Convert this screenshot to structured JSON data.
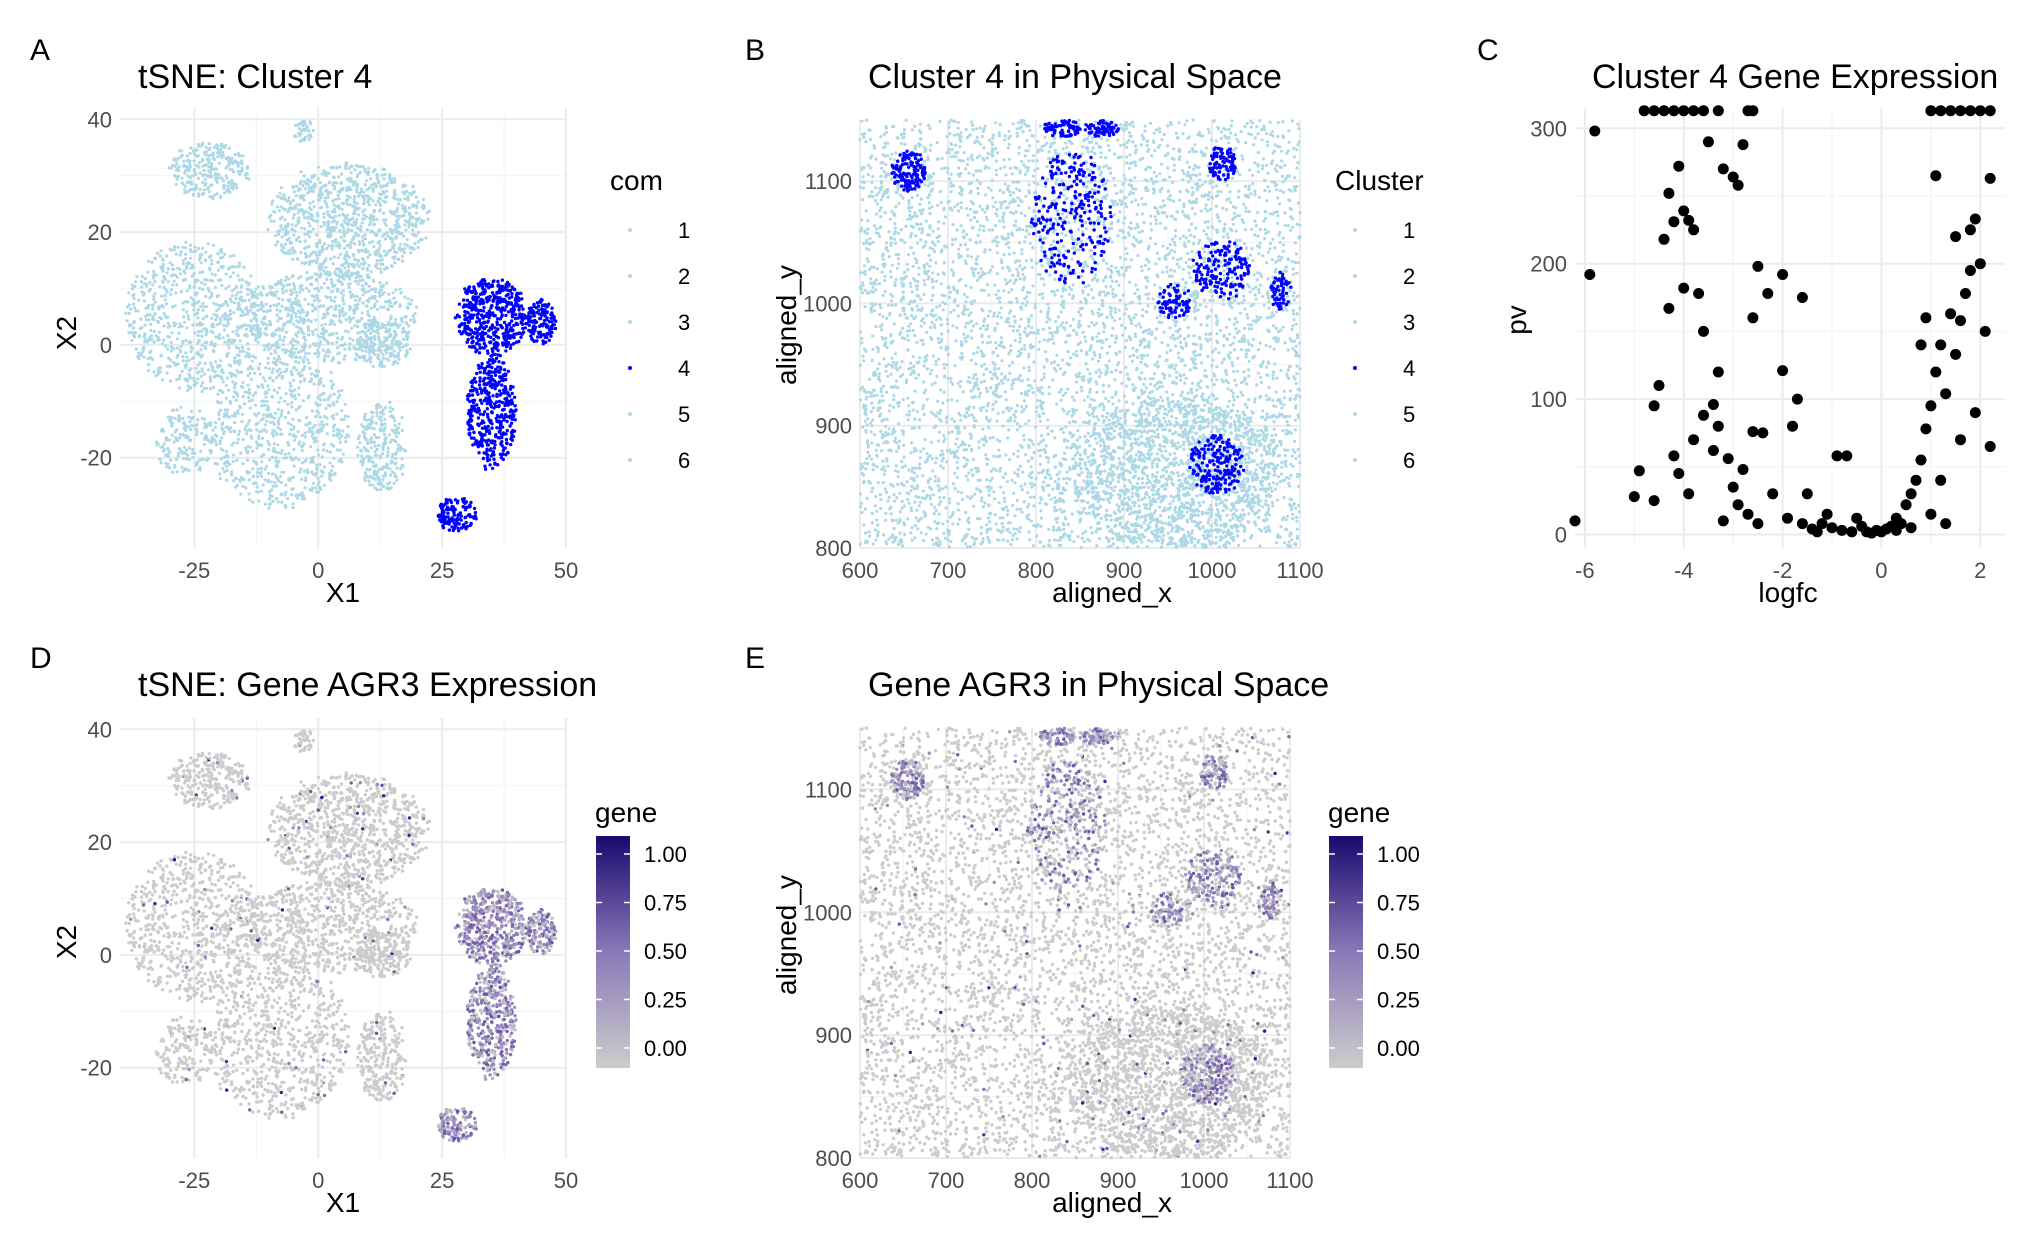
{
  "chart_data": [
    {
      "panel_tag": "A",
      "type": "scatter",
      "title": "tSNE: Cluster 4",
      "xlabel": "X1",
      "ylabel": "X2",
      "xlim": [
        -40,
        50
      ],
      "ylim": [
        -36,
        42
      ],
      "xticks": [
        -25,
        0,
        25,
        50
      ],
      "yticks": [
        -20,
        0,
        20,
        40
      ],
      "grid": true,
      "legend": {
        "title": "com",
        "position": "right",
        "entries": [
          "1",
          "2",
          "3",
          "4",
          "5",
          "6"
        ],
        "colors": [
          "#add8e6",
          "#add8e6",
          "#add8e6",
          "#0000ff",
          "#add8e6",
          "#add8e6"
        ]
      },
      "colors": {
        "other": "#add8e6",
        "highlight": "#0000ff"
      },
      "regions": [
        {
          "cluster": "other",
          "shape": "ellipse",
          "cx": -22,
          "cy": 31,
          "rx": 8,
          "ry": 5,
          "n": 260
        },
        {
          "cluster": "other",
          "shape": "ellipse",
          "cx": -3,
          "cy": 38,
          "rx": 2,
          "ry": 2,
          "n": 40
        },
        {
          "cluster": "other",
          "shape": "ellipse",
          "cx": 6,
          "cy": 22,
          "rx": 16,
          "ry": 10,
          "n": 900
        },
        {
          "cluster": "other",
          "shape": "ellipse",
          "cx": 2,
          "cy": 5,
          "rx": 18,
          "ry": 8,
          "n": 700
        },
        {
          "cluster": "other",
          "shape": "ellipse",
          "cx": -25,
          "cy": 5,
          "rx": 14,
          "ry": 13,
          "n": 700
        },
        {
          "cluster": "other",
          "shape": "ellipse",
          "cx": -8,
          "cy": -15,
          "rx": 14,
          "ry": 14,
          "n": 700
        },
        {
          "cluster": "other",
          "shape": "ellipse",
          "cx": -27,
          "cy": -17,
          "rx": 6,
          "ry": 6,
          "n": 160
        },
        {
          "cluster": "other",
          "shape": "ellipse",
          "cx": 13,
          "cy": -18,
          "rx": 5,
          "ry": 8,
          "n": 240
        },
        {
          "cluster": "other",
          "shape": "ellipse",
          "cx": 13,
          "cy": 0,
          "rx": 6,
          "ry": 4,
          "n": 160
        },
        {
          "cluster": "4",
          "shape": "ellipse",
          "cx": 35,
          "cy": 5,
          "rx": 7,
          "ry": 7,
          "n": 450
        },
        {
          "cluster": "4",
          "shape": "ellipse",
          "cx": 35,
          "cy": -12,
          "rx": 5,
          "ry": 10,
          "n": 400
        },
        {
          "cluster": "4",
          "shape": "ellipse",
          "cx": 45,
          "cy": 4,
          "rx": 3,
          "ry": 4,
          "n": 130
        },
        {
          "cluster": "4",
          "shape": "ellipse",
          "cx": 28,
          "cy": -30,
          "rx": 4,
          "ry": 3,
          "n": 130
        }
      ]
    },
    {
      "panel_tag": "B",
      "type": "scatter",
      "title": "Cluster 4 in Physical Space",
      "xlabel": "aligned_x",
      "ylabel": "aligned_y",
      "xlim": [
        600,
        1100
      ],
      "ylim": [
        800,
        1150
      ],
      "xticks": [
        600,
        700,
        800,
        900,
        1000,
        1100
      ],
      "yticks": [
        800,
        900,
        1000,
        1100
      ],
      "grid": true,
      "legend": {
        "title": "Cluster",
        "position": "right",
        "entries": [
          "1",
          "2",
          "3",
          "4",
          "5",
          "6"
        ],
        "colors": [
          "#add8e6",
          "#add8e6",
          "#add8e6",
          "#0000ff",
          "#add8e6",
          "#add8e6"
        ]
      },
      "colors": {
        "other": "#add8e6",
        "highlight": "#0000ff"
      },
      "background_points": 5200,
      "regions": [
        {
          "cluster": "other",
          "shape": "ellipse",
          "cx": 960,
          "cy": 860,
          "rx": 120,
          "ry": 65,
          "n": 1300
        },
        {
          "cluster": "4",
          "shape": "ellipse",
          "cx": 655,
          "cy": 1108,
          "rx": 20,
          "ry": 17,
          "n": 130
        },
        {
          "cluster": "4",
          "shape": "ellipse",
          "cx": 840,
          "cy": 1070,
          "rx": 45,
          "ry": 55,
          "n": 260
        },
        {
          "cluster": "4",
          "shape": "ellipse",
          "cx": 830,
          "cy": 1143,
          "rx": 22,
          "ry": 7,
          "n": 70
        },
        {
          "cluster": "4",
          "shape": "ellipse",
          "cx": 875,
          "cy": 1143,
          "rx": 20,
          "ry": 7,
          "n": 70
        },
        {
          "cluster": "4",
          "shape": "ellipse",
          "cx": 1012,
          "cy": 1115,
          "rx": 16,
          "ry": 14,
          "n": 90
        },
        {
          "cluster": "4",
          "shape": "ellipse",
          "cx": 1010,
          "cy": 1028,
          "rx": 32,
          "ry": 25,
          "n": 170
        },
        {
          "cluster": "4",
          "shape": "ellipse",
          "cx": 958,
          "cy": 1002,
          "rx": 20,
          "ry": 14,
          "n": 70
        },
        {
          "cluster": "4",
          "shape": "ellipse",
          "cx": 1078,
          "cy": 1010,
          "rx": 12,
          "ry": 15,
          "n": 60
        },
        {
          "cluster": "4",
          "shape": "ellipse",
          "cx": 1005,
          "cy": 868,
          "rx": 30,
          "ry": 25,
          "n": 200
        }
      ]
    },
    {
      "panel_tag": "C",
      "type": "scatter",
      "title": "Cluster 4 Gene Expression",
      "xlabel": "logfc",
      "ylabel": "pv",
      "xlim": [
        -6.2,
        2.5
      ],
      "ylim": [
        -10,
        315
      ],
      "xticks": [
        -6,
        -4,
        -2,
        0,
        2
      ],
      "yticks": [
        0,
        100,
        200,
        300
      ],
      "grid": true,
      "point_color": "#000000",
      "points": [
        [
          -6.2,
          10
        ],
        [
          -5.8,
          298
        ],
        [
          -5.9,
          192
        ],
        [
          -5.0,
          28
        ],
        [
          -4.9,
          47
        ],
        [
          -4.6,
          95
        ],
        [
          -4.4,
          218
        ],
        [
          -4.3,
          252
        ],
        [
          -4.2,
          231
        ],
        [
          -4.0,
          239
        ],
        [
          -4.1,
          272
        ],
        [
          -3.9,
          232
        ],
        [
          -3.8,
          225
        ],
        [
          -3.5,
          290
        ],
        [
          -3.2,
          270
        ],
        [
          -3.0,
          264
        ],
        [
          -2.9,
          258
        ],
        [
          -2.8,
          288
        ],
        [
          -4.3,
          167
        ],
        [
          -4.0,
          182
        ],
        [
          -3.7,
          178
        ],
        [
          -3.6,
          150
        ],
        [
          -3.3,
          120
        ],
        [
          -2.5,
          198
        ],
        [
          -2.3,
          178
        ],
        [
          -2.0,
          192
        ],
        [
          -1.6,
          175
        ],
        [
          -2.6,
          160
        ],
        [
          -4.5,
          110
        ],
        [
          -4.2,
          58
        ],
        [
          -4.1,
          45
        ],
        [
          -3.9,
          30
        ],
        [
          -3.8,
          70
        ],
        [
          -3.6,
          88
        ],
        [
          -3.4,
          96
        ],
        [
          -3.3,
          80
        ],
        [
          -3.1,
          56
        ],
        [
          -3.0,
          35
        ],
        [
          -2.9,
          22
        ],
        [
          -2.8,
          48
        ],
        [
          -2.7,
          15
        ],
        [
          -2.6,
          76
        ],
        [
          -2.5,
          8
        ],
        [
          -2.4,
          75
        ],
        [
          -2.2,
          30
        ],
        [
          -2.0,
          121
        ],
        [
          -1.9,
          12
        ],
        [
          -1.8,
          80
        ],
        [
          -1.7,
          100
        ],
        [
          -1.6,
          8
        ],
        [
          -1.5,
          30
        ],
        [
          -1.4,
          4
        ],
        [
          -1.3,
          2
        ],
        [
          -1.2,
          8
        ],
        [
          -1.1,
          15
        ],
        [
          -1.0,
          5
        ],
        [
          -0.9,
          58
        ],
        [
          -0.8,
          3
        ],
        [
          -0.7,
          58
        ],
        [
          -0.6,
          2
        ],
        [
          -0.5,
          12
        ],
        [
          -0.4,
          6
        ],
        [
          -0.3,
          2
        ],
        [
          -0.2,
          1
        ],
        [
          -0.1,
          3
        ],
        [
          0.0,
          2
        ],
        [
          0.1,
          4
        ],
        [
          0.2,
          6
        ],
        [
          0.3,
          12
        ],
        [
          0.4,
          8
        ],
        [
          0.5,
          22
        ],
        [
          0.6,
          30
        ],
        [
          0.7,
          40
        ],
        [
          0.8,
          55
        ],
        [
          0.9,
          78
        ],
        [
          1.0,
          95
        ],
        [
          1.1,
          120
        ],
        [
          1.2,
          140
        ],
        [
          1.3,
          104
        ],
        [
          1.4,
          163
        ],
        [
          1.5,
          133
        ],
        [
          1.6,
          158
        ],
        [
          1.7,
          178
        ],
        [
          1.8,
          195
        ],
        [
          1.9,
          233
        ],
        [
          2.0,
          200
        ],
        [
          2.1,
          150
        ],
        [
          2.2,
          263
        ],
        [
          1.1,
          265
        ],
        [
          1.5,
          220
        ],
        [
          1.8,
          225
        ],
        [
          0.8,
          140
        ],
        [
          0.9,
          160
        ],
        [
          1.2,
          40
        ],
        [
          1.6,
          70
        ],
        [
          1.9,
          90
        ],
        [
          2.2,
          65
        ],
        [
          1.0,
          15
        ],
        [
          1.3,
          8
        ],
        [
          0.6,
          5
        ],
        [
          0.3,
          3
        ],
        [
          -4.6,
          25
        ],
        [
          -3.2,
          10
        ],
        [
          -3.4,
          62
        ]
      ],
      "capped_points": {
        "value": 313,
        "left_x": [
          -4.8,
          -4.6,
          -4.4,
          -4.2,
          -4.0,
          -3.8,
          -3.6,
          -3.3,
          -2.7,
          -2.6
        ],
        "right_x": [
          1.0,
          1.2,
          1.4,
          1.6,
          1.8,
          2.0,
          2.2
        ]
      }
    },
    {
      "panel_tag": "D",
      "type": "scatter",
      "title": "tSNE: Gene AGR3 Expression",
      "xlabel": "X1",
      "ylabel": "X2",
      "xlim": [
        -40,
        50
      ],
      "ylim": [
        -36,
        42
      ],
      "xticks": [
        -25,
        0,
        25,
        50
      ],
      "yticks": [
        -20,
        0,
        20,
        40
      ],
      "grid": true,
      "legend": {
        "title": "gene",
        "position": "right",
        "type": "colorbar",
        "ticks": [
          "1.00",
          "0.75",
          "0.50",
          "0.25",
          "0.00"
        ],
        "low": "#cccccc",
        "high": "#1a0a6e"
      },
      "color_scale": {
        "low": "#cccccc",
        "mid": "#8a79b8",
        "high": "#2a1482"
      },
      "layout_source": "A",
      "high_expression_cluster": "4"
    },
    {
      "panel_tag": "E",
      "type": "scatter",
      "title": "Gene AGR3 in Physical Space",
      "xlabel": "aligned_x",
      "ylabel": "aligned_y",
      "xlim": [
        600,
        1100
      ],
      "ylim": [
        800,
        1150
      ],
      "xticks": [
        600,
        700,
        800,
        900,
        1000,
        1100
      ],
      "yticks": [
        800,
        900,
        1000,
        1100
      ],
      "grid": true,
      "legend": {
        "title": "gene",
        "position": "right",
        "type": "colorbar",
        "ticks": [
          "1.00",
          "0.75",
          "0.50",
          "0.25",
          "0.00"
        ],
        "low": "#cccccc",
        "high": "#1a0a6e"
      },
      "color_scale": {
        "low": "#cccccc",
        "mid": "#8a79b8",
        "high": "#2a1482"
      },
      "layout_source": "B",
      "high_expression_cluster": "4"
    }
  ]
}
